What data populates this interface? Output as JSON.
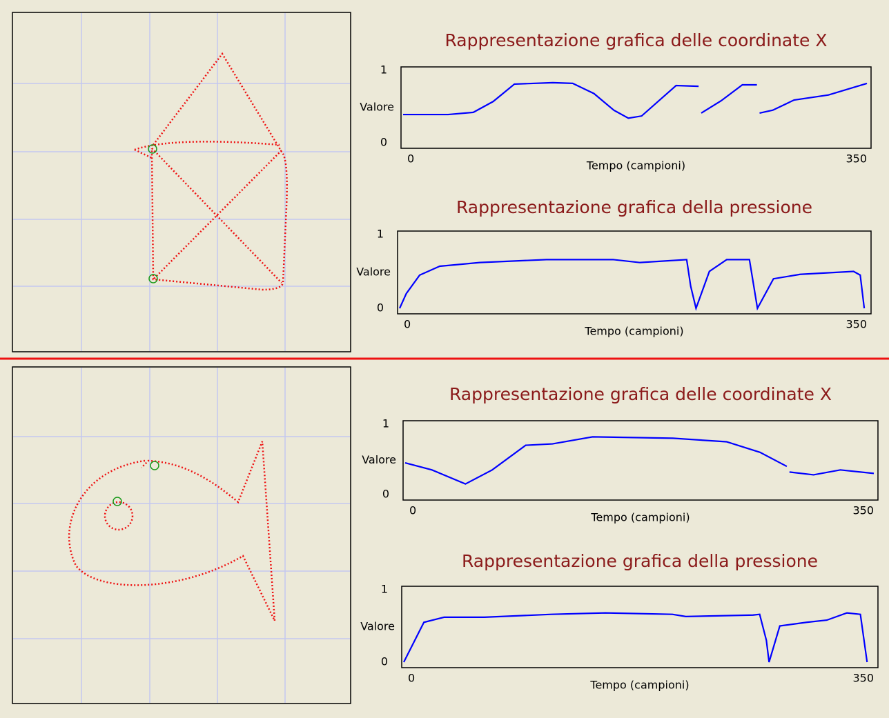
{
  "panels": [
    {
      "charts": [
        {
          "type": "line",
          "title": "Rappresentazione grafica delle coordinate X",
          "ylabel": "Valore",
          "xlabel": "Tempo (campioni)",
          "xlim": [
            0,
            350
          ],
          "xticks": [
            0,
            350
          ],
          "ylim": [
            0,
            1
          ],
          "yticks": [
            0,
            1
          ],
          "x": [
            0,
            19,
            34,
            53,
            68,
            84,
            113,
            128,
            144,
            159,
            170,
            180,
            193,
            206,
            223,
            224,
            225,
            240,
            256,
            267,
            268,
            269,
            279,
            295,
            321,
            350
          ],
          "series": [
            {
              "color": "#0000ff",
              "values": [
                0.39,
                0.39,
                0.39,
                0.42,
                0.57,
                0.81,
                0.83,
                0.82,
                0.68,
                0.45,
                0.34,
                0.37,
                0.58,
                0.79,
                0.78,
                null,
                0.41,
                0.58,
                0.8,
                0.8,
                null,
                0.41,
                0.45,
                0.59,
                0.66,
                0.82
              ]
            }
          ]
        },
        {
          "type": "line",
          "title": "Rappresentazione grafica della pressione",
          "ylabel": "Valore",
          "xlabel": "Tempo (campioni)",
          "xlim": [
            0,
            350
          ],
          "xticks": [
            0,
            350
          ],
          "ylim": [
            0,
            1
          ],
          "yticks": [
            0,
            1
          ],
          "x": [
            0,
            5,
            15,
            30,
            60,
            110,
            160,
            180,
            215,
            218,
            222,
            232,
            245,
            262,
            268,
            280,
            300,
            340,
            345,
            348
          ],
          "series": [
            {
              "color": "#0000ff",
              "values": [
                0,
                0.2,
                0.45,
                0.57,
                0.62,
                0.66,
                0.66,
                0.62,
                0.66,
                0.3,
                0,
                0.5,
                0.66,
                0.66,
                0,
                0.4,
                0.46,
                0.5,
                0.45,
                0
              ]
            }
          ]
        }
      ]
    },
    {
      "charts": [
        {
          "type": "line",
          "title": "Rappresentazione grafica delle coordinate X",
          "ylabel": "Valore",
          "xlabel": "Tempo (campioni)",
          "xlim": [
            0,
            350
          ],
          "xticks": [
            0,
            350
          ],
          "ylim": [
            0,
            1
          ],
          "yticks": [
            0,
            1
          ],
          "x": [
            0,
            20,
            45,
            65,
            90,
            110,
            140,
            200,
            240,
            265,
            285,
            286,
            287,
            305,
            325,
            350
          ],
          "series": [
            {
              "color": "#0000ff",
              "values": [
                0.45,
                0.35,
                0.15,
                0.35,
                0.7,
                0.72,
                0.82,
                0.8,
                0.75,
                0.6,
                0.4,
                null,
                0.32,
                0.28,
                0.35,
                0.3
              ]
            }
          ]
        },
        {
          "type": "line",
          "title": "Rappresentazione grafica della pressione",
          "ylabel": "Valore",
          "xlabel": "Tempo (campioni)",
          "xlim": [
            0,
            350
          ],
          "xticks": [
            0,
            350
          ],
          "ylim": [
            0,
            1
          ],
          "yticks": [
            0,
            1
          ],
          "x": [
            0,
            15,
            30,
            60,
            110,
            150,
            200,
            210,
            260,
            265,
            270,
            272,
            280,
            300,
            315,
            330,
            340,
            345
          ],
          "series": [
            {
              "color": "#0000ff",
              "values": [
                0,
                0.55,
                0.62,
                0.62,
                0.66,
                0.68,
                0.66,
                0.63,
                0.65,
                0.66,
                0.3,
                0,
                0.5,
                0.55,
                0.58,
                0.68,
                0.66,
                0
              ]
            }
          ]
        }
      ]
    }
  ]
}
